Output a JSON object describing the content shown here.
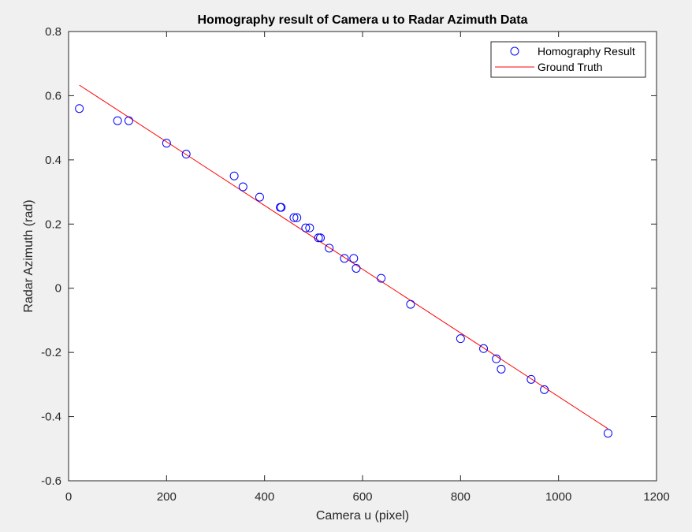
{
  "chart_data": {
    "type": "scatter",
    "title": "Homography result of Camera u to Radar Azimuth Data",
    "xlabel": "Camera u (pixel)",
    "ylabel": "Radar Azimuth (rad)",
    "xlim": [
      0,
      1200
    ],
    "ylim": [
      -0.6,
      0.8
    ],
    "xticks": [
      0,
      200,
      400,
      600,
      800,
      1000,
      1200
    ],
    "yticks": [
      -0.6,
      -0.4,
      -0.2,
      0,
      0.2,
      0.4,
      0.6,
      0.8
    ],
    "xtick_labels": [
      "0",
      "200",
      "400",
      "600",
      "800",
      "1000",
      "1200"
    ],
    "ytick_labels": [
      "-0.6",
      "-0.4",
      "-0.2",
      "0",
      "0.2",
      "0.4",
      "0.6",
      "0.8"
    ],
    "grid": false,
    "legend_position": "top-right",
    "series": [
      {
        "name": "Homography Result",
        "kind": "markers",
        "marker": "circle",
        "color": "#0000ff",
        "points": [
          [
            22,
            0.56
          ],
          [
            100,
            0.522
          ],
          [
            123,
            0.522
          ],
          [
            200,
            0.452
          ],
          [
            240,
            0.418
          ],
          [
            338,
            0.35
          ],
          [
            356,
            0.316
          ],
          [
            390,
            0.284
          ],
          [
            432,
            0.252
          ],
          [
            434,
            0.252
          ],
          [
            460,
            0.22
          ],
          [
            466,
            0.22
          ],
          [
            484,
            0.188
          ],
          [
            492,
            0.188
          ],
          [
            510,
            0.157
          ],
          [
            514,
            0.157
          ],
          [
            532,
            0.125
          ],
          [
            563,
            0.093
          ],
          [
            582,
            0.093
          ],
          [
            587,
            0.062
          ],
          [
            638,
            0.031
          ],
          [
            698,
            -0.05
          ],
          [
            800,
            -0.157
          ],
          [
            847,
            -0.188
          ],
          [
            873,
            -0.22
          ],
          [
            883,
            -0.252
          ],
          [
            944,
            -0.284
          ],
          [
            971,
            -0.316
          ],
          [
            1101,
            -0.452
          ]
        ]
      },
      {
        "name": "Ground Truth",
        "kind": "line",
        "color": "#ff0000",
        "points": [
          [
            22,
            0.633
          ],
          [
            1101,
            -0.438
          ]
        ]
      }
    ]
  }
}
